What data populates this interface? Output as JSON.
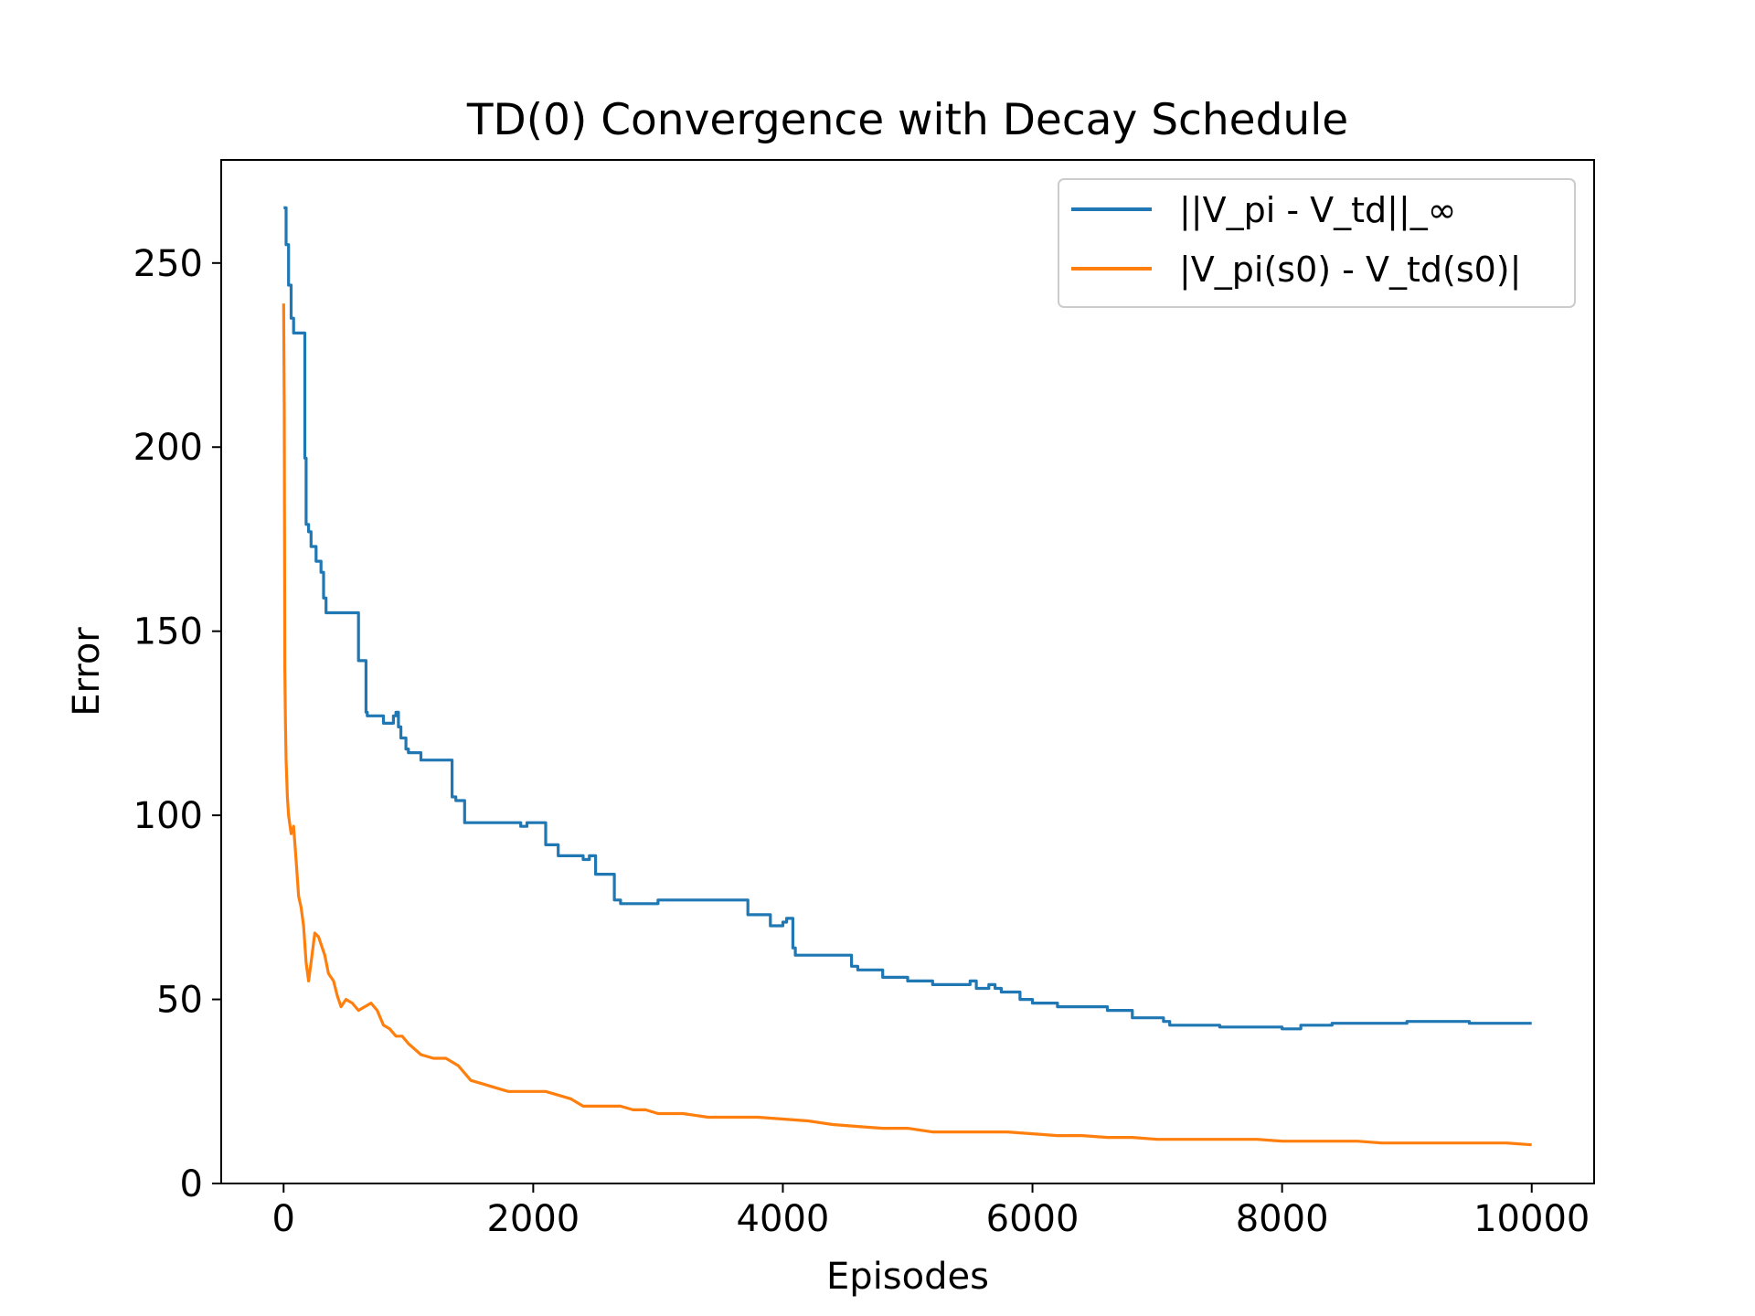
{
  "chart_data": {
    "type": "line",
    "title": "TD(0) Convergence with Decay Schedule",
    "xlabel": "Episodes",
    "ylabel": "Error",
    "xlim": [
      -500,
      10500
    ],
    "ylim": [
      0,
      278
    ],
    "xticks": [
      0,
      2000,
      4000,
      6000,
      8000,
      10000
    ],
    "yticks": [
      0,
      50,
      100,
      150,
      200,
      250
    ],
    "grid": false,
    "legend_position": "top-right",
    "series": [
      {
        "name": "||V_pi - V_td||_∞",
        "color": "#1f77b4",
        "step": true,
        "x": [
          0,
          20,
          40,
          60,
          80,
          160,
          170,
          180,
          200,
          220,
          260,
          300,
          320,
          340,
          370,
          400,
          600,
          620,
          660,
          670,
          700,
          800,
          880,
          900,
          920,
          940,
          980,
          1000,
          1100,
          1350,
          1380,
          1450,
          1480,
          1900,
          1950,
          2000,
          2100,
          2200,
          2300,
          2400,
          2450,
          2500,
          2600,
          2650,
          2700,
          2850,
          3000,
          3700,
          3720,
          3850,
          3900,
          4000,
          4030,
          4080,
          4100,
          4500,
          4550,
          4600,
          4800,
          4950,
          5000,
          5100,
          5200,
          5300,
          5400,
          5500,
          5550,
          5600,
          5650,
          5700,
          5750,
          5900,
          6000,
          6100,
          6200,
          6400,
          6600,
          6700,
          6800,
          7000,
          7050,
          7100,
          7300,
          7500,
          7800,
          8000,
          8150,
          8400,
          8800,
          9000,
          9100,
          9500,
          10000
        ],
        "y": [
          265,
          255,
          244,
          235,
          231,
          231,
          197,
          179,
          177,
          173,
          169,
          166,
          159,
          155,
          155,
          155,
          142,
          142,
          128,
          127,
          127,
          125,
          127,
          128,
          124,
          121,
          118,
          117,
          115,
          105,
          104,
          98,
          98,
          97,
          98,
          98,
          92,
          89,
          89,
          88,
          89,
          84,
          84,
          77,
          76,
          76,
          77,
          77,
          73,
          73,
          70,
          71,
          72,
          64,
          62,
          62,
          59,
          58,
          56,
          56,
          55,
          55,
          54,
          54,
          54,
          55,
          53,
          53,
          54,
          53,
          52,
          50,
          49,
          49,
          48,
          48,
          47,
          47,
          45,
          45,
          44,
          43,
          43,
          42.5,
          42.5,
          42,
          43,
          43.5,
          43.5,
          44,
          44,
          43.5,
          43.5
        ]
      },
      {
        "name": "|V_pi(s0) - V_td(s0)|",
        "color": "#ff7f0e",
        "step": false,
        "x": [
          0,
          5,
          10,
          15,
          20,
          30,
          40,
          60,
          80,
          100,
          120,
          140,
          160,
          180,
          200,
          220,
          250,
          280,
          300,
          330,
          360,
          400,
          430,
          460,
          500,
          550,
          600,
          650,
          700,
          750,
          800,
          850,
          900,
          950,
          1000,
          1100,
          1200,
          1300,
          1400,
          1500,
          1600,
          1700,
          1800,
          1900,
          2000,
          2100,
          2200,
          2300,
          2400,
          2500,
          2600,
          2700,
          2800,
          2900,
          3000,
          3200,
          3400,
          3600,
          3800,
          4000,
          4200,
          4400,
          4600,
          4800,
          5000,
          5200,
          5400,
          5600,
          5800,
          6000,
          6200,
          6400,
          6600,
          6800,
          7000,
          7200,
          7400,
          7600,
          7800,
          8000,
          8200,
          8400,
          8600,
          8800,
          9000,
          9200,
          9400,
          9600,
          9800,
          10000
        ],
        "y": [
          239,
          210,
          140,
          125,
          115,
          105,
          100,
          95,
          97,
          88,
          78,
          75,
          70,
          60,
          55,
          60,
          68,
          67,
          65,
          62,
          57,
          55,
          51,
          48,
          50,
          49,
          47,
          48,
          49,
          47,
          43,
          42,
          40,
          40,
          38,
          35,
          34,
          34,
          32,
          28,
          27,
          26,
          25,
          25,
          25,
          25,
          24,
          23,
          21,
          21,
          21,
          21,
          20,
          20,
          19,
          19,
          18,
          18,
          18,
          17.5,
          17,
          16,
          15.5,
          15,
          15,
          14,
          14,
          14,
          14,
          13.5,
          13,
          13,
          12.5,
          12.5,
          12,
          12,
          12,
          12,
          12,
          11.5,
          11.5,
          11.5,
          11.5,
          11,
          11,
          11,
          11,
          11,
          11,
          10.5
        ]
      }
    ]
  }
}
